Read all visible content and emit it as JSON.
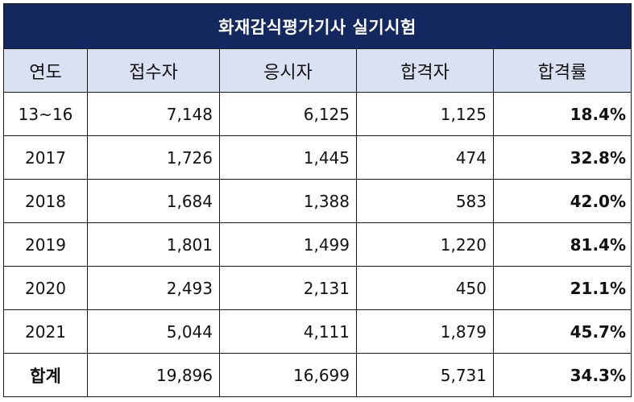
{
  "table": {
    "title": "화재감식평가기사 실기시험",
    "headers": [
      "연도",
      "접수자",
      "응시자",
      "합격자",
      "합격률"
    ],
    "rows": [
      {
        "year": "13~16",
        "applicants": "7,148",
        "examinees": "6,125",
        "passers": "1,125",
        "pass_rate": "18.4%"
      },
      {
        "year": "2017",
        "applicants": "1,726",
        "examinees": "1,445",
        "passers": "474",
        "pass_rate": "32.8%"
      },
      {
        "year": "2018",
        "applicants": "1,684",
        "examinees": "1,388",
        "passers": "583",
        "pass_rate": "42.0%"
      },
      {
        "year": "2019",
        "applicants": "1,801",
        "examinees": "1,499",
        "passers": "1,220",
        "pass_rate": "81.4%"
      },
      {
        "year": "2020",
        "applicants": "2,493",
        "examinees": "2,131",
        "passers": "450",
        "pass_rate": "21.1%"
      },
      {
        "year": "2021",
        "applicants": "5,044",
        "examinees": "4,111",
        "passers": "1,879",
        "pass_rate": "45.7%"
      }
    ],
    "total": {
      "year": "합계",
      "applicants": "19,896",
      "examinees": "16,699",
      "passers": "5,731",
      "pass_rate": "34.3%"
    }
  },
  "colors": {
    "title_bg": "#12285e",
    "header_bg": "#d9e1f2",
    "border": "#1a1a1a"
  }
}
